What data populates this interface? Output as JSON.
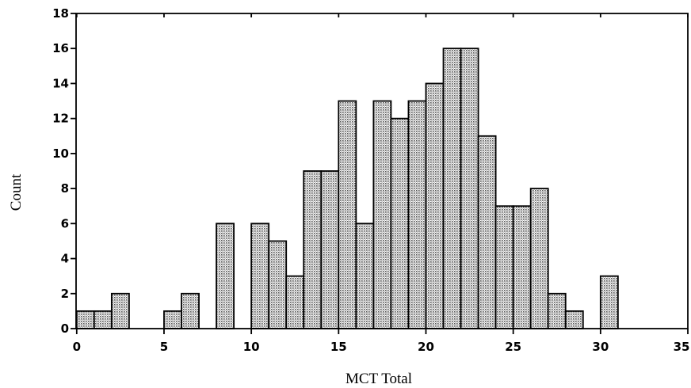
{
  "chart_data": {
    "type": "bar",
    "style": "histogram",
    "xlabel": "MCT Total",
    "ylabel": "Count",
    "xlim": [
      0,
      35
    ],
    "ylim": [
      0,
      18
    ],
    "x_ticks": [
      0,
      5,
      10,
      15,
      20,
      25,
      30,
      35
    ],
    "y_ticks": [
      0,
      2,
      4,
      6,
      8,
      10,
      12,
      14,
      16,
      18
    ],
    "bin_width": 1,
    "bins": [
      {
        "start": 0,
        "count": 1
      },
      {
        "start": 1,
        "count": 1
      },
      {
        "start": 2,
        "count": 2
      },
      {
        "start": 3,
        "count": 0
      },
      {
        "start": 4,
        "count": 0
      },
      {
        "start": 5,
        "count": 1
      },
      {
        "start": 6,
        "count": 2
      },
      {
        "start": 7,
        "count": 0
      },
      {
        "start": 8,
        "count": 6
      },
      {
        "start": 9,
        "count": 0
      },
      {
        "start": 10,
        "count": 6
      },
      {
        "start": 11,
        "count": 5
      },
      {
        "start": 12,
        "count": 3
      },
      {
        "start": 13,
        "count": 9
      },
      {
        "start": 14,
        "count": 9
      },
      {
        "start": 15,
        "count": 13
      },
      {
        "start": 16,
        "count": 6
      },
      {
        "start": 17,
        "count": 13
      },
      {
        "start": 18,
        "count": 12
      },
      {
        "start": 19,
        "count": 13
      },
      {
        "start": 20,
        "count": 14
      },
      {
        "start": 21,
        "count": 16
      },
      {
        "start": 22,
        "count": 16
      },
      {
        "start": 23,
        "count": 11
      },
      {
        "start": 24,
        "count": 7
      },
      {
        "start": 25,
        "count": 7
      },
      {
        "start": 26,
        "count": 8
      },
      {
        "start": 27,
        "count": 2
      },
      {
        "start": 28,
        "count": 1
      },
      {
        "start": 29,
        "count": 0
      },
      {
        "start": 30,
        "count": 3
      }
    ],
    "grid": false,
    "bar_fill": "#c8c8c8",
    "bar_stroke": "#000000"
  }
}
